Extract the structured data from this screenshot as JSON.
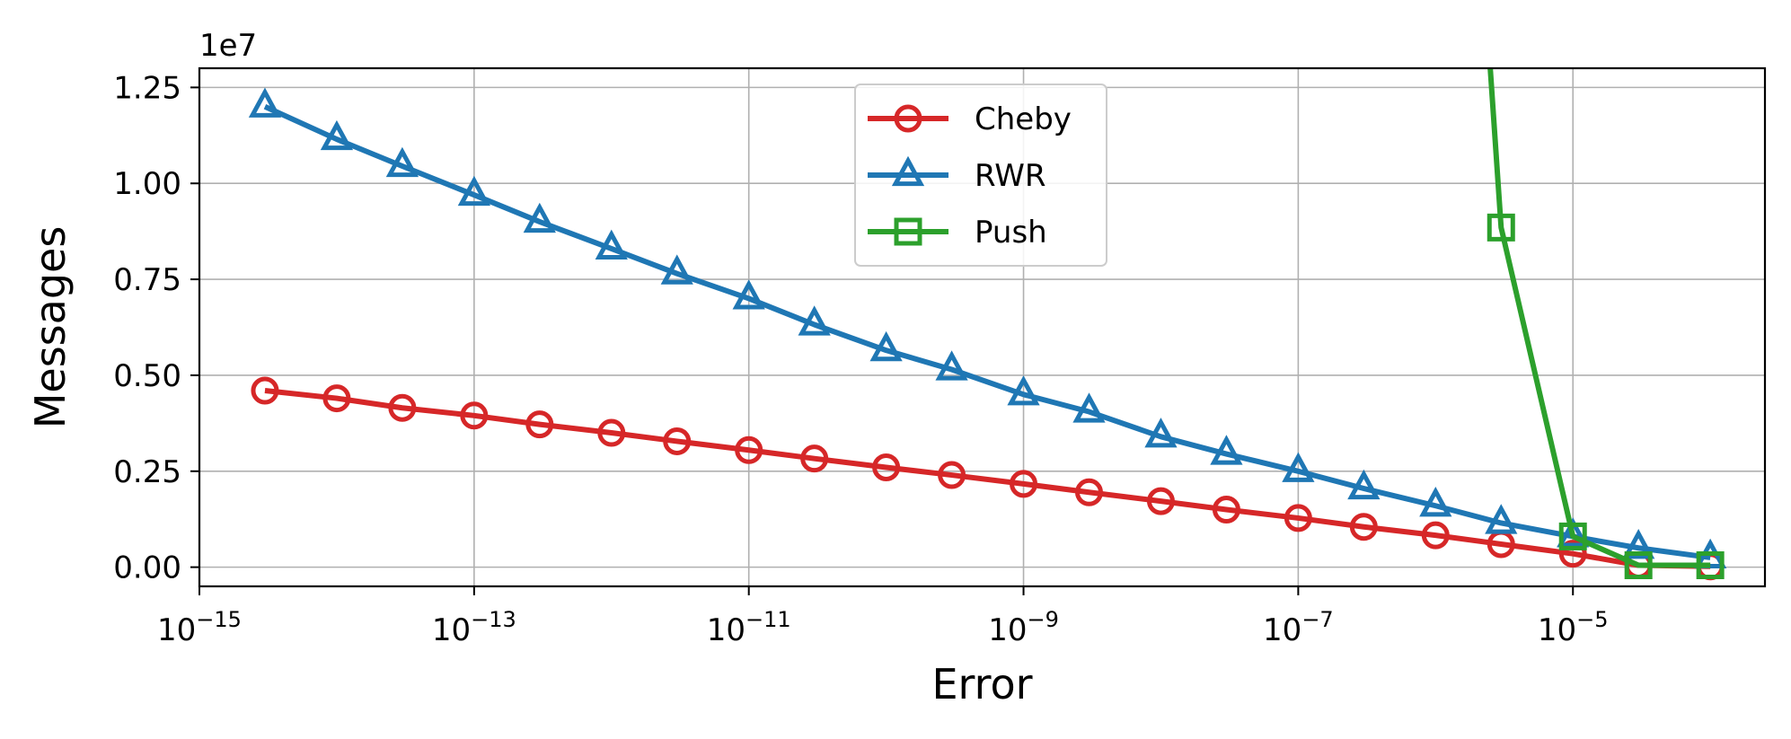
{
  "chart_data": {
    "type": "line",
    "xlabel": "Error",
    "ylabel": "Messages",
    "x_scale": "log",
    "xlim": [
      1e-15,
      0.00025
    ],
    "ylim": [
      -0.05,
      1.3
    ],
    "y_multiplier_label": "1e7",
    "x_ticks": [
      {
        "value": 1e-15,
        "base": "10",
        "exp": "−15"
      },
      {
        "value": 1e-13,
        "base": "10",
        "exp": "−13"
      },
      {
        "value": 1e-11,
        "base": "10",
        "exp": "−11"
      },
      {
        "value": 1e-09,
        "base": "10",
        "exp": "−9"
      },
      {
        "value": 1e-07,
        "base": "10",
        "exp": "−7"
      },
      {
        "value": 1e-05,
        "base": "10",
        "exp": "−5"
      }
    ],
    "y_ticks": [
      {
        "value": 0.0,
        "label": "0.00"
      },
      {
        "value": 0.25,
        "label": "0.25"
      },
      {
        "value": 0.5,
        "label": "0.50"
      },
      {
        "value": 0.75,
        "label": "0.75"
      },
      {
        "value": 1.0,
        "label": "1.00"
      },
      {
        "value": 1.25,
        "label": "1.25"
      }
    ],
    "grid": true,
    "legend_position": "top-center",
    "series": [
      {
        "name": "Cheby",
        "color": "#d62728",
        "marker": "circle",
        "x": [
          3e-15,
          1e-14,
          3e-14,
          1e-13,
          3e-13,
          1e-12,
          3e-12,
          1e-11,
          3e-11,
          1e-10,
          3e-10,
          1e-09,
          3e-09,
          1e-08,
          3e-08,
          1e-07,
          3e-07,
          1e-06,
          3e-06,
          1e-05,
          3e-05,
          0.0001
        ],
        "y": [
          0.46,
          0.44,
          0.415,
          0.395,
          0.372,
          0.35,
          0.328,
          0.305,
          0.283,
          0.26,
          0.24,
          0.217,
          0.195,
          0.172,
          0.15,
          0.128,
          0.105,
          0.083,
          0.06,
          0.035,
          0.005,
          0.002
        ]
      },
      {
        "name": "RWR",
        "color": "#1f77b4",
        "marker": "triangle",
        "x": [
          3e-15,
          1e-14,
          3e-14,
          1e-13,
          3e-13,
          1e-12,
          3e-12,
          1e-11,
          3e-11,
          1e-10,
          3e-10,
          1e-09,
          3e-09,
          1e-08,
          3e-08,
          1e-07,
          3e-07,
          1e-06,
          3e-06,
          1e-05,
          3e-05,
          0.0001
        ],
        "y": [
          1.2,
          1.115,
          1.045,
          0.97,
          0.9,
          0.83,
          0.765,
          0.7,
          0.632,
          0.565,
          0.515,
          0.45,
          0.405,
          0.34,
          0.295,
          0.25,
          0.205,
          0.16,
          0.115,
          0.08,
          0.05,
          0.025
        ]
      },
      {
        "name": "Push",
        "color": "#2ca02c",
        "marker": "square",
        "x": [
          2.5e-06,
          3e-06,
          1e-05,
          3e-05,
          0.0001
        ],
        "y": [
          1.3,
          0.885,
          0.08,
          0.005,
          0.005
        ],
        "markers_from_index": 1
      }
    ]
  }
}
